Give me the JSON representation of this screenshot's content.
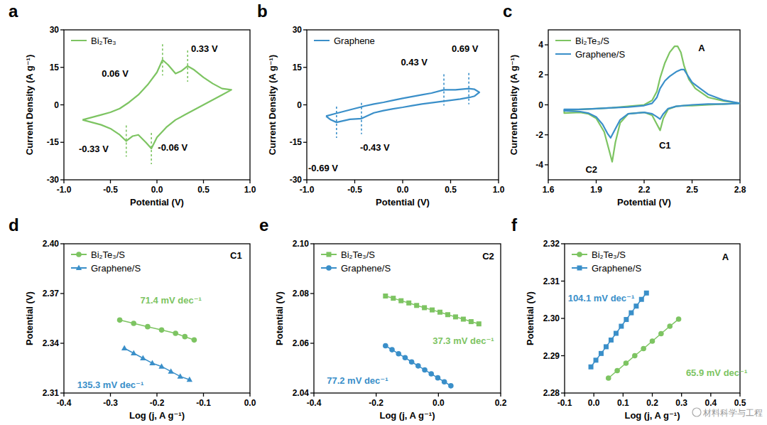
{
  "watermark": "材料科学与工程",
  "chart_data": [
    {
      "panel_label": "a",
      "type": "line",
      "x_label": "Potential (V)",
      "y_label": "Current Density (A g⁻¹)",
      "xlim": [
        -1,
        1
      ],
      "xticks": [
        {
          "value": -1,
          "label": "-1.0"
        },
        -0.5,
        {
          "value": 0,
          "label": "0.0"
        },
        0.5,
        {
          "value": 1,
          "label": "1.0"
        }
      ],
      "ylim": [
        -30,
        30
      ],
      "yticks": [
        -30,
        -15,
        0,
        15,
        30
      ],
      "legend": "top-left",
      "series": [
        {
          "name": "Bi₂Te₃",
          "color": "#7dc462",
          "x": [
            -0.8,
            -0.7,
            -0.6,
            -0.5,
            -0.4,
            -0.3,
            -0.2,
            -0.1,
            0,
            0.06,
            0.12,
            0.2,
            0.26,
            0.33,
            0.4,
            0.5,
            0.6,
            0.7,
            0.8,
            0.7,
            0.6,
            0.5,
            0.4,
            0.3,
            0.2,
            0.1,
            0,
            -0.06,
            -0.12,
            -0.2,
            -0.26,
            -0.33,
            -0.4,
            -0.5,
            -0.6,
            -0.7,
            -0.8
          ],
          "values": [
            -6,
            -5,
            -4,
            -3,
            -1.5,
            1,
            4,
            8,
            13,
            18,
            16,
            12.5,
            13.5,
            15.5,
            14,
            11,
            8.5,
            6.5,
            6,
            4,
            2,
            0,
            -2,
            -4,
            -6,
            -9,
            -13,
            -17.5,
            -15,
            -12,
            -12.5,
            -14.5,
            -12,
            -9.5,
            -8,
            -7,
            -6
          ]
        }
      ],
      "peaks": [
        {
          "x": 0.06,
          "y": 18
        },
        {
          "x": 0.33,
          "y": 15.5
        },
        {
          "x": -0.33,
          "y": -14.5
        },
        {
          "x": -0.06,
          "y": -17.5
        }
      ],
      "annotations": [
        {
          "text": "0.06 V",
          "x": -0.45,
          "y": 12.6
        },
        {
          "text": "0.33 V",
          "x": 0.51,
          "y": 22.6
        },
        {
          "text": "-0.33 V",
          "x": -0.68,
          "y": -17.5
        },
        {
          "text": "-0.06 V",
          "x": 0.17,
          "y": -17
        }
      ]
    },
    {
      "panel_label": "b",
      "type": "line",
      "x_label": "Potential (V)",
      "y_label": "Current Density (A g⁻¹)",
      "xlim": [
        -1,
        1
      ],
      "xticks": [
        {
          "value": -1,
          "label": "-1.0"
        },
        -0.5,
        {
          "value": 0,
          "label": "0.0"
        },
        0.5,
        {
          "value": 1,
          "label": "1.0"
        }
      ],
      "ylim": [
        -30,
        30
      ],
      "yticks": [
        -30,
        -15,
        0,
        15,
        30
      ],
      "legend": "top-left",
      "series": [
        {
          "name": "Graphene",
          "color": "#3a8fc9",
          "x": [
            -0.8,
            -0.7,
            -0.6,
            -0.5,
            -0.4,
            -0.3,
            -0.2,
            -0.1,
            0,
            0.1,
            0.2,
            0.3,
            0.43,
            0.55,
            0.69,
            0.75,
            0.8,
            0.75,
            0.7,
            0.6,
            0.5,
            0.4,
            0.3,
            0.2,
            0.1,
            0,
            -0.1,
            -0.2,
            -0.3,
            -0.43,
            -0.55,
            -0.69,
            -0.75,
            -0.8
          ],
          "values": [
            -4.5,
            -3.5,
            -2.5,
            -1.5,
            -0.5,
            0.3,
            1,
            1.8,
            2.6,
            3.3,
            4,
            4.7,
            6,
            6,
            6.5,
            6.2,
            5,
            3.5,
            3,
            2.3,
            1.8,
            1.3,
            0.8,
            0.3,
            -0.3,
            -1,
            -1.6,
            -2.3,
            -3.2,
            -5.5,
            -5.8,
            -7,
            -6,
            -4.5
          ]
        }
      ],
      "peaks": [
        {
          "x": 0.43,
          "y": 6
        },
        {
          "x": 0.69,
          "y": 6.5
        },
        {
          "x": -0.43,
          "y": -5.5
        },
        {
          "x": -0.69,
          "y": -7
        }
      ],
      "annotations": [
        {
          "text": "0.69 V",
          "x": 0.65,
          "y": 22.6
        },
        {
          "text": "0.43 V",
          "x": 0.12,
          "y": 17.2
        },
        {
          "text": "-0.43 V",
          "x": -0.29,
          "y": -17
        },
        {
          "text": "-0.69 V",
          "x": -0.83,
          "y": -25.4
        }
      ]
    },
    {
      "panel_label": "c",
      "type": "line",
      "x_label": "Potential (V)",
      "y_label": "Current Density (A g⁻¹)",
      "xlim": [
        1.6,
        2.8
      ],
      "xticks": [
        1.6,
        1.9,
        2.2,
        2.5,
        2.8
      ],
      "ylim": [
        -5,
        5
      ],
      "yticks": [
        -4,
        -2,
        0,
        2,
        4
      ],
      "legend": "top-left",
      "series": [
        {
          "name": "Bi₂Te₃/S",
          "color": "#7dc462",
          "x": [
            2.8,
            2.7,
            2.6,
            2.5,
            2.45,
            2.4,
            2.35,
            2.32,
            2.3,
            2.28,
            2.25,
            2.2,
            2.1,
            2.05,
            2.02,
            2.0,
            1.98,
            1.95,
            1.9,
            1.85,
            1.8,
            1.7,
            1.7,
            1.8,
            1.9,
            2.0,
            2.1,
            2.2,
            2.25,
            2.28,
            2.3,
            2.33,
            2.36,
            2.39,
            2.41,
            2.43,
            2.45,
            2.48,
            2.52,
            2.6,
            2.7,
            2.8
          ],
          "values": [
            0.1,
            0.05,
            0,
            -0.05,
            -0.05,
            -0.1,
            -0.3,
            -0.9,
            -1.7,
            -1.3,
            -0.7,
            -0.5,
            -0.6,
            -1.2,
            -2.5,
            -3.8,
            -3.0,
            -1.8,
            -0.9,
            -0.6,
            -0.5,
            -0.55,
            -0.4,
            -0.3,
            -0.25,
            -0.2,
            -0.1,
            0,
            0.3,
            0.9,
            1.8,
            2.8,
            3.5,
            3.9,
            3.9,
            3.5,
            2.6,
            1.7,
            1.1,
            0.5,
            0.25,
            0.1
          ]
        },
        {
          "name": "Graphene/S",
          "color": "#3a8fc9",
          "x": [
            2.8,
            2.7,
            2.6,
            2.5,
            2.4,
            2.35,
            2.32,
            2.3,
            2.28,
            2.25,
            2.2,
            2.1,
            2.05,
            2.02,
            1.99,
            1.97,
            1.94,
            1.9,
            1.85,
            1.8,
            1.7,
            1.7,
            1.8,
            1.9,
            2.0,
            2.1,
            2.2,
            2.25,
            2.28,
            2.3,
            2.33,
            2.36,
            2.4,
            2.43,
            2.45,
            2.47,
            2.5,
            2.55,
            2.6,
            2.7,
            2.8
          ],
          "values": [
            0.1,
            0.05,
            0.05,
            0,
            -0.1,
            -0.25,
            -0.6,
            -0.95,
            -0.8,
            -0.6,
            -0.5,
            -0.6,
            -1.0,
            -1.6,
            -2.2,
            -1.9,
            -1.3,
            -0.8,
            -0.55,
            -0.45,
            -0.4,
            -0.3,
            -0.3,
            -0.25,
            -0.2,
            -0.15,
            -0.05,
            0.1,
            0.5,
            1.1,
            1.6,
            1.9,
            2.2,
            2.35,
            2.35,
            2.0,
            1.5,
            1.1,
            0.7,
            0.3,
            0.1
          ]
        }
      ],
      "annotations": [
        {
          "text": "A",
          "x": 2.56,
          "y": 3.8
        },
        {
          "text": "C1",
          "x": 2.33,
          "y": -2.7
        },
        {
          "text": "C2",
          "x": 1.87,
          "y": -4.3
        }
      ]
    },
    {
      "panel_label": "d",
      "type": "line",
      "x_label": "Log (j, A g⁻¹)",
      "y_label": "Potential (V)",
      "xlim": [
        -0.4,
        0
      ],
      "xticks": [
        -0.4,
        -0.3,
        -0.2,
        -0.1,
        {
          "value": 0,
          "label": "0.0"
        }
      ],
      "ylim": [
        2.31,
        2.4
      ],
      "yticks": [
        2.31,
        2.34,
        2.37,
        {
          "value": 2.4,
          "label": "2.40"
        }
      ],
      "legend": "top-left",
      "series": [
        {
          "name": "Bi₂Te₃/S",
          "color": "#7dc462",
          "marker": "circle",
          "x": [
            -0.28,
            -0.25,
            -0.22,
            -0.19,
            -0.16,
            -0.14,
            -0.12
          ],
          "values": [
            2.354,
            2.352,
            2.35,
            2.348,
            2.346,
            2.344,
            2.342
          ]
        },
        {
          "name": "Graphene/S",
          "color": "#3a8fc9",
          "marker": "triangle",
          "x": [
            -0.27,
            -0.25,
            -0.23,
            -0.21,
            -0.19,
            -0.17,
            -0.15,
            -0.13
          ],
          "values": [
            2.337,
            2.334,
            2.331,
            2.328,
            2.326,
            2.323,
            2.32,
            2.318
          ]
        }
      ],
      "annotations": [
        {
          "text": "C1",
          "x": -0.03,
          "y": 2.393
        },
        {
          "text": "71.4 mV dec⁻¹",
          "x": -0.17,
          "y": 2.366,
          "color": "#7dc462"
        },
        {
          "text": "135.3 mV dec⁻¹",
          "x": -0.3,
          "y": 2.315,
          "color": "#3a8fc9"
        }
      ]
    },
    {
      "panel_label": "e",
      "type": "line",
      "x_label": "Log (j, A g⁻¹)",
      "y_label": "Potential (V)",
      "xlim": [
        -0.4,
        0.2
      ],
      "xticks": [
        -0.4,
        -0.2,
        {
          "value": 0,
          "label": "0.0"
        },
        0.2
      ],
      "ylim": [
        2.04,
        2.1
      ],
      "yticks": [
        2.04,
        2.06,
        2.08,
        {
          "value": 2.1,
          "label": "2.10"
        }
      ],
      "legend": "top-left",
      "series": [
        {
          "name": "Bi₂Te₃/S",
          "color": "#7dc462",
          "marker": "square",
          "x": [
            -0.17,
            -0.145,
            -0.12,
            -0.095,
            -0.07,
            -0.045,
            -0.02,
            0.005,
            0.03,
            0.055,
            0.08,
            0.105,
            0.13
          ],
          "values": [
            2.079,
            2.0781,
            2.0771,
            2.0762,
            2.0752,
            2.0743,
            2.0734,
            2.0725,
            2.0715,
            2.0706,
            2.0697,
            2.0687,
            2.0678
          ]
        },
        {
          "name": "Graphene/S",
          "color": "#3a8fc9",
          "marker": "circle",
          "x": [
            -0.17,
            -0.149,
            -0.128,
            -0.107,
            -0.086,
            -0.065,
            -0.044,
            -0.023,
            -0.002,
            0.019,
            0.04
          ],
          "values": [
            2.059,
            2.0574,
            2.0558,
            2.0542,
            2.0525,
            2.0509,
            2.0493,
            2.0477,
            2.0461,
            2.0445,
            2.0429
          ]
        }
      ],
      "annotations": [
        {
          "text": "C2",
          "x": 0.16,
          "y": 2.095
        },
        {
          "text": "37.3 mV dec⁻¹",
          "x": 0.08,
          "y": 2.061,
          "color": "#7dc462"
        },
        {
          "text": "77.2 mV dec⁻¹",
          "x": -0.26,
          "y": 2.045,
          "color": "#3a8fc9"
        }
      ]
    },
    {
      "panel_label": "f",
      "type": "line",
      "x_label": "Log (j, A g⁻¹)",
      "y_label": "Potential (V)",
      "xlim": [
        -0.1,
        0.5
      ],
      "xticks": [
        -0.1,
        {
          "value": 0,
          "label": "0.0"
        },
        0.1,
        0.2,
        0.3,
        0.4,
        0.5
      ],
      "ylim": [
        2.28,
        2.32
      ],
      "yticks": [
        2.28,
        2.29,
        {
          "value": 2.3,
          "label": "2.30"
        },
        2.31,
        2.32
      ],
      "legend": "top-left",
      "series": [
        {
          "name": "Bi₂Te₃/S",
          "color": "#7dc462",
          "marker": "circle",
          "x": [
            0.05,
            0.08,
            0.11,
            0.14,
            0.17,
            0.2,
            0.23,
            0.26,
            0.29
          ],
          "values": [
            2.284,
            2.286,
            2.288,
            2.29,
            2.2919,
            2.2939,
            2.2959,
            2.2979,
            2.2998
          ]
        },
        {
          "name": "Graphene/S",
          "color": "#3a8fc9",
          "marker": "square",
          "x": [
            -0.01,
            0.007,
            0.025,
            0.042,
            0.059,
            0.076,
            0.094,
            0.111,
            0.128,
            0.145,
            0.163,
            0.18
          ],
          "values": [
            2.287,
            2.2888,
            2.2906,
            2.2924,
            2.2942,
            2.296,
            2.2979,
            2.2997,
            2.3015,
            2.3033,
            2.3051,
            2.3068
          ]
        }
      ],
      "annotations": [
        {
          "text": "A",
          "x": 0.45,
          "y": 2.3165
        },
        {
          "text": "104.1 mV dec⁻¹",
          "x": 0.025,
          "y": 2.3055,
          "color": "#3a8fc9"
        },
        {
          "text": "65.9 mV dec⁻¹",
          "x": 0.42,
          "y": 2.2855,
          "color": "#7dc462"
        }
      ]
    }
  ]
}
